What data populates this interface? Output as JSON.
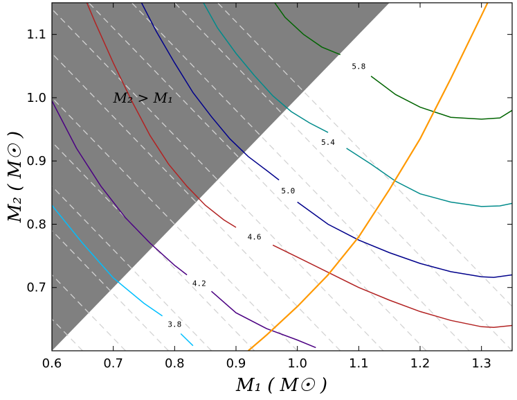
{
  "chart_data": {
    "type": "line",
    "subtype": "contour",
    "title": "",
    "xlabel": "M₁ ( M☉ )",
    "ylabel": "M₂ ( M☉ )",
    "xlim": [
      0.6,
      1.35
    ],
    "ylim": [
      0.6,
      1.15
    ],
    "xticks": [
      0.6,
      0.7,
      0.8,
      0.9,
      1.0,
      1.1,
      1.2,
      1.3
    ],
    "xtick_labels": [
      "0.6",
      "0.7",
      "0.8",
      "0.9",
      "1.0",
      "1.1",
      "1.2",
      "1.3"
    ],
    "yticks": [
      0.7,
      0.8,
      0.9,
      1.0,
      1.1
    ],
    "ytick_labels": [
      "0.7",
      "0.8",
      "0.9",
      "1.0",
      "1.1"
    ],
    "shaded_region": {
      "label": "M₂ > M₁",
      "color": "#808080"
    },
    "dashed_lines": {
      "color": "#d3d3d3",
      "x_intercepts": [
        0.55,
        0.62,
        0.69,
        0.76,
        0.83,
        0.9,
        0.97,
        1.04,
        1.11,
        1.18,
        1.25,
        1.32,
        1.39,
        1.46,
        1.53,
        1.6,
        1.67,
        1.74,
        1.81,
        1.88,
        1.95,
        2.02
      ]
    },
    "series": [
      {
        "name": "3.8",
        "color": "#00bfff",
        "label": "3.8",
        "x": [
          0.6,
          0.65,
          0.7,
          0.75,
          0.78
        ],
        "y": [
          0.83,
          0.77,
          0.715,
          0.675,
          0.655
        ],
        "x2": [
          0.81,
          0.83
        ],
        "y2": [
          0.627,
          0.608
        ],
        "label_at": [
          0.8,
          0.642
        ]
      },
      {
        "name": "4.2",
        "color": "#4b0082",
        "label": "4.2",
        "x": [
          0.6,
          0.64,
          0.68,
          0.72,
          0.76,
          0.8,
          0.82
        ],
        "y": [
          0.995,
          0.92,
          0.86,
          0.81,
          0.77,
          0.735,
          0.72
        ],
        "x2": [
          0.86,
          0.9,
          0.95,
          1.0,
          1.03
        ],
        "y2": [
          0.694,
          0.66,
          0.635,
          0.617,
          0.605
        ],
        "label_at": [
          0.84,
          0.707
        ]
      },
      {
        "name": "4.6",
        "color": "#b22222",
        "label": "4.6",
        "x": [
          0.657,
          0.67,
          0.7,
          0.73,
          0.76,
          0.79,
          0.82,
          0.85,
          0.88,
          0.9
        ],
        "y": [
          1.15,
          1.12,
          1.055,
          0.995,
          0.94,
          0.895,
          0.86,
          0.83,
          0.807,
          0.795
        ],
        "x2": [
          0.96,
          1.0,
          1.05,
          1.1,
          1.15,
          1.2,
          1.25,
          1.3,
          1.32,
          1.35
        ],
        "y2": [
          0.767,
          0.748,
          0.724,
          0.7,
          0.68,
          0.662,
          0.648,
          0.638,
          0.637,
          0.64
        ],
        "label_at": [
          0.93,
          0.78
        ]
      },
      {
        "name": "5.0",
        "color": "#00008b",
        "label": "5.0",
        "x": [
          0.746,
          0.77,
          0.8,
          0.83,
          0.86,
          0.89,
          0.92,
          0.95,
          0.97
        ],
        "y": [
          1.15,
          1.105,
          1.055,
          1.008,
          0.97,
          0.935,
          0.907,
          0.885,
          0.87
        ],
        "x2": [
          1.0,
          1.05,
          1.1,
          1.15,
          1.2,
          1.25,
          1.3,
          1.32,
          1.35
        ],
        "y2": [
          0.835,
          0.8,
          0.775,
          0.755,
          0.738,
          0.725,
          0.717,
          0.716,
          0.72
        ],
        "label_at": [
          0.985,
          0.853
        ]
      },
      {
        "name": "5.4",
        "color": "#008b8b",
        "label": "5.4",
        "x": [
          0.847,
          0.87,
          0.9,
          0.93,
          0.96,
          0.99,
          1.02,
          1.05
        ],
        "y": [
          1.15,
          1.11,
          1.07,
          1.035,
          1.003,
          0.978,
          0.96,
          0.945
        ],
        "x2": [
          1.08,
          1.12,
          1.16,
          1.2,
          1.25,
          1.3,
          1.33,
          1.35
        ],
        "y2": [
          0.92,
          0.895,
          0.868,
          0.848,
          0.835,
          0.828,
          0.829,
          0.833
        ],
        "label_at": [
          1.05,
          0.93
        ]
      },
      {
        "name": "5.8",
        "color": "#006400",
        "label": "5.8",
        "x": [
          0.963,
          0.98,
          1.01,
          1.04,
          1.07
        ],
        "y": [
          1.15,
          1.127,
          1.1,
          1.08,
          1.068
        ],
        "x2": [
          1.12,
          1.16,
          1.2,
          1.25,
          1.3,
          1.33,
          1.35
        ],
        "y2": [
          1.034,
          1.005,
          0.985,
          0.969,
          0.966,
          0.968,
          0.98
        ],
        "label_at": [
          1.1,
          1.05
        ]
      },
      {
        "name": "orange",
        "color": "#ff9900",
        "label": "",
        "x": [
          0.92,
          0.95,
          1.0,
          1.05,
          1.1,
          1.15,
          1.2,
          1.25,
          1.3,
          1.31
        ],
        "y": [
          0.6,
          0.625,
          0.67,
          0.72,
          0.78,
          0.855,
          0.935,
          1.03,
          1.13,
          1.15
        ],
        "x2": [],
        "y2": [],
        "label_at": null
      }
    ]
  }
}
